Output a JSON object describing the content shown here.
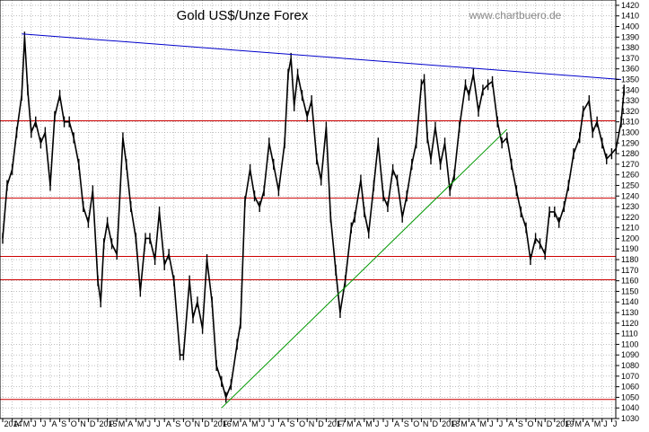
{
  "chart_data": {
    "type": "line",
    "title": "Gold US$/Unze Forex",
    "watermark": "www.chartbuero.de",
    "y_ticks": [
      1030,
      1040,
      1050,
      1060,
      1070,
      1080,
      1090,
      1100,
      1110,
      1120,
      1130,
      1140,
      1150,
      1160,
      1170,
      1180,
      1190,
      1200,
      1210,
      1220,
      1230,
      1240,
      1250,
      1260,
      1270,
      1280,
      1290,
      1300,
      1310,
      1320,
      1330,
      1340,
      1350,
      1360,
      1370,
      1380,
      1390,
      1400,
      1410,
      1420
    ],
    "ylim": [
      1030,
      1425
    ],
    "x_tick_labels": [
      "2014",
      "A",
      "M",
      "J",
      "J",
      "A",
      "S",
      "O",
      "N",
      "D",
      "2015",
      "F",
      "M",
      "A",
      "M",
      "J",
      "J",
      "A",
      "S",
      "O",
      "N",
      "D",
      "2016",
      "F",
      "M",
      "A",
      "M",
      "J",
      "J",
      "A",
      "S",
      "O",
      "N",
      "D",
      "2017",
      "F",
      "M",
      "A",
      "M",
      "J",
      "J",
      "A",
      "S",
      "O",
      "N",
      "D",
      "2018",
      "F",
      "M",
      "A",
      "M",
      "J",
      "J",
      "A",
      "S",
      "O",
      "N",
      "D",
      "2019",
      "F",
      "M",
      "A",
      "M",
      "J",
      "J",
      "A"
    ],
    "x_start": "2014-01",
    "colors": {
      "price": "#000000",
      "resistance": "#0000cc",
      "support": "#cc0000",
      "trend": "#009900",
      "grid": "#999999"
    },
    "horizontal_lines": [
      1048,
      1161,
      1183,
      1238,
      1311
    ],
    "resistance_line": {
      "from": [
        "2014-03",
        1393
      ],
      "to": [
        "2019-06",
        1350
      ]
    },
    "trend_line": {
      "from": [
        "2015-12",
        1040
      ],
      "to": [
        "2018-06",
        1303
      ]
    },
    "series": [
      {
        "values": [
          [
            "2014-01",
            1200
          ],
          [
            "2014-01-15",
            1250
          ],
          [
            "2014-02",
            1265
          ],
          [
            "2014-02-15",
            1300
          ],
          [
            "2014-03",
            1335
          ],
          [
            "2014-03-10",
            1390
          ],
          [
            "2014-03-20",
            1340
          ],
          [
            "2014-04",
            1300
          ],
          [
            "2014-04-15",
            1310
          ],
          [
            "2014-05",
            1290
          ],
          [
            "2014-05-15",
            1300
          ],
          [
            "2014-06",
            1250
          ],
          [
            "2014-06-15",
            1315
          ],
          [
            "2014-07",
            1335
          ],
          [
            "2014-07-15",
            1310
          ],
          [
            "2014-08",
            1310
          ],
          [
            "2014-08-15",
            1295
          ],
          [
            "2014-09",
            1270
          ],
          [
            "2014-09-15",
            1230
          ],
          [
            "2014-10",
            1215
          ],
          [
            "2014-10-15",
            1245
          ],
          [
            "2014-11",
            1160
          ],
          [
            "2014-11-10",
            1140
          ],
          [
            "2014-11-20",
            1195
          ],
          [
            "2014-12",
            1215
          ],
          [
            "2014-12-15",
            1195
          ],
          [
            "2015-01",
            1185
          ],
          [
            "2015-01-20",
            1295
          ],
          [
            "2015-02",
            1270
          ],
          [
            "2015-02-15",
            1230
          ],
          [
            "2015-03",
            1200
          ],
          [
            "2015-03-15",
            1150
          ],
          [
            "2015-04",
            1200
          ],
          [
            "2015-04-15",
            1200
          ],
          [
            "2015-05",
            1180
          ],
          [
            "2015-05-15",
            1225
          ],
          [
            "2015-06",
            1175
          ],
          [
            "2015-06-15",
            1185
          ],
          [
            "2015-07",
            1160
          ],
          [
            "2015-07-20",
            1090
          ],
          [
            "2015-08",
            1090
          ],
          [
            "2015-08-20",
            1160
          ],
          [
            "2015-09",
            1125
          ],
          [
            "2015-09-15",
            1140
          ],
          [
            "2015-10",
            1115
          ],
          [
            "2015-10-15",
            1180
          ],
          [
            "2015-11",
            1140
          ],
          [
            "2015-11-15",
            1080
          ],
          [
            "2015-12",
            1065
          ],
          [
            "2015-12-15",
            1050
          ],
          [
            "2016-01",
            1062
          ],
          [
            "2016-01-20",
            1100
          ],
          [
            "2016-02",
            1120
          ],
          [
            "2016-02-15",
            1235
          ],
          [
            "2016-03",
            1265
          ],
          [
            "2016-03-15",
            1240
          ],
          [
            "2016-04",
            1230
          ],
          [
            "2016-04-15",
            1245
          ],
          [
            "2016-05",
            1290
          ],
          [
            "2016-05-15",
            1270
          ],
          [
            "2016-06",
            1245
          ],
          [
            "2016-06-20",
            1290
          ],
          [
            "2016-07",
            1355
          ],
          [
            "2016-07-10",
            1370
          ],
          [
            "2016-07-20",
            1325
          ],
          [
            "2016-08",
            1355
          ],
          [
            "2016-08-15",
            1335
          ],
          [
            "2016-09",
            1315
          ],
          [
            "2016-09-15",
            1330
          ],
          [
            "2016-10",
            1275
          ],
          [
            "2016-10-15",
            1255
          ],
          [
            "2016-11",
            1305
          ],
          [
            "2016-11-15",
            1220
          ],
          [
            "2016-12",
            1170
          ],
          [
            "2016-12-15",
            1130
          ],
          [
            "2017-01",
            1160
          ],
          [
            "2017-01-20",
            1210
          ],
          [
            "2017-02",
            1220
          ],
          [
            "2017-02-20",
            1255
          ],
          [
            "2017-03",
            1225
          ],
          [
            "2017-03-15",
            1205
          ],
          [
            "2017-04",
            1250
          ],
          [
            "2017-04-15",
            1290
          ],
          [
            "2017-05",
            1240
          ],
          [
            "2017-05-15",
            1230
          ],
          [
            "2017-06",
            1265
          ],
          [
            "2017-06-15",
            1255
          ],
          [
            "2017-07",
            1220
          ],
          [
            "2017-07-15",
            1240
          ],
          [
            "2017-08",
            1270
          ],
          [
            "2017-08-15",
            1290
          ],
          [
            "2017-09",
            1345
          ],
          [
            "2017-09-10",
            1350
          ],
          [
            "2017-09-20",
            1295
          ],
          [
            "2017-10",
            1275
          ],
          [
            "2017-10-15",
            1305
          ],
          [
            "2017-11",
            1270
          ],
          [
            "2017-11-15",
            1290
          ],
          [
            "2017-12",
            1245
          ],
          [
            "2017-12-15",
            1260
          ],
          [
            "2018-01",
            1305
          ],
          [
            "2018-01-20",
            1345
          ],
          [
            "2018-02",
            1335
          ],
          [
            "2018-02-15",
            1355
          ],
          [
            "2018-03",
            1320
          ],
          [
            "2018-03-15",
            1340
          ],
          [
            "2018-04",
            1345
          ],
          [
            "2018-04-15",
            1348
          ],
          [
            "2018-05",
            1310
          ],
          [
            "2018-05-15",
            1290
          ],
          [
            "2018-06",
            1295
          ],
          [
            "2018-06-15",
            1270
          ],
          [
            "2018-07",
            1245
          ],
          [
            "2018-07-15",
            1225
          ],
          [
            "2018-08",
            1210
          ],
          [
            "2018-08-15",
            1180
          ],
          [
            "2018-09",
            1200
          ],
          [
            "2018-09-15",
            1195
          ],
          [
            "2018-10",
            1185
          ],
          [
            "2018-10-15",
            1225
          ],
          [
            "2018-11",
            1225
          ],
          [
            "2018-11-15",
            1215
          ],
          [
            "2018-12",
            1230
          ],
          [
            "2018-12-15",
            1250
          ],
          [
            "2019-01",
            1280
          ],
          [
            "2019-01-20",
            1295
          ],
          [
            "2019-02",
            1320
          ],
          [
            "2019-02-20",
            1330
          ],
          [
            "2019-03",
            1300
          ],
          [
            "2019-03-15",
            1310
          ],
          [
            "2019-04",
            1290
          ],
          [
            "2019-04-15",
            1275
          ],
          [
            "2019-05",
            1280
          ],
          [
            "2019-05-15",
            1285
          ],
          [
            "2019-06",
            1310
          ],
          [
            "2019-06-10",
            1340
          ]
        ]
      }
    ]
  }
}
